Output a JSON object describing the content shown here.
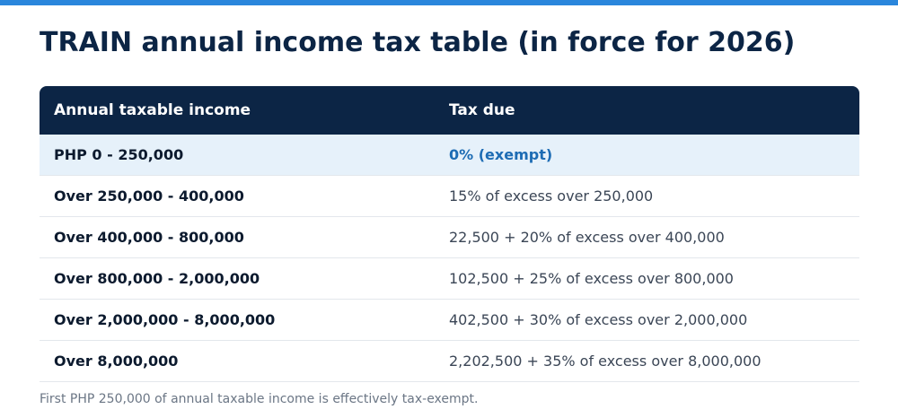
{
  "colors": {
    "accent_bar": "#2a86dc",
    "header_bg": "#0c2545",
    "highlight_bg": "#e6f1fa",
    "highlight_text": "#1d6cb4"
  },
  "title": "TRAIN annual income tax table (in force for 2026)",
  "table": {
    "headers": [
      "Annual taxable income",
      "Tax due"
    ],
    "rows": [
      {
        "income": "PHP 0 - 250,000",
        "tax": "0% (exempt)",
        "highlighted": true
      },
      {
        "income": "Over 250,000 - 400,000",
        "tax": "15% of excess over 250,000",
        "highlighted": false
      },
      {
        "income": "Over 400,000 - 800,000",
        "tax": "22,500 + 20% of excess over 400,000",
        "highlighted": false
      },
      {
        "income": "Over 800,000 - 2,000,000",
        "tax": "102,500 + 25% of excess over 800,000",
        "highlighted": false
      },
      {
        "income": "Over 2,000,000 - 8,000,000",
        "tax": "402,500 + 30% of excess over 2,000,000",
        "highlighted": false
      },
      {
        "income": "Over 8,000,000",
        "tax": "2,202,500 + 35% of excess over 8,000,000",
        "highlighted": false
      }
    ]
  },
  "footnote": "First PHP 250,000 of annual taxable income is effectively tax-exempt."
}
